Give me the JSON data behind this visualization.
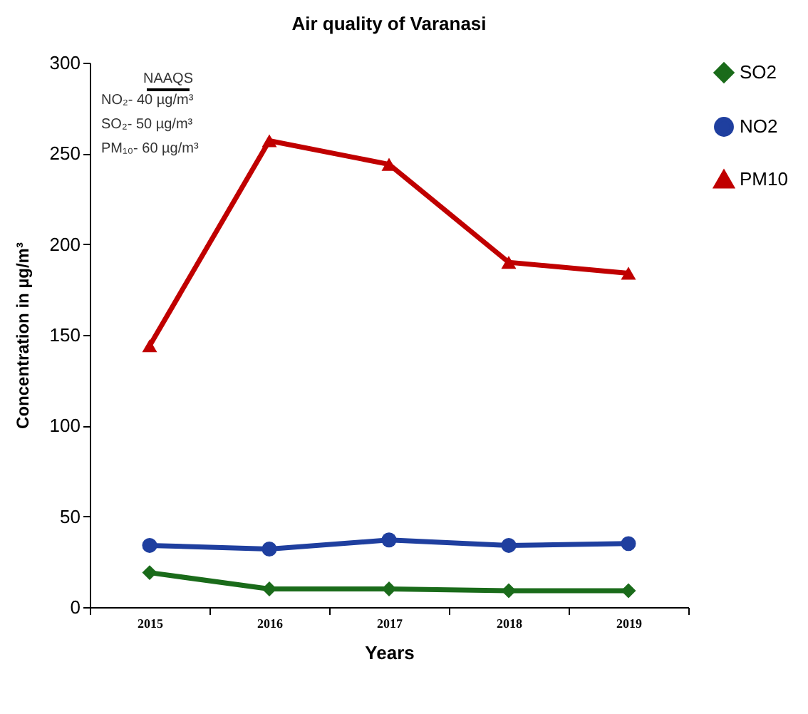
{
  "chart_data": {
    "type": "line",
    "title": "Air quality of  Varanasi",
    "xlabel": "Years",
    "ylabel": "Concentration in  µg/m³",
    "categories": [
      "2015",
      "2016",
      "2017",
      "2018",
      "2019"
    ],
    "series": [
      {
        "name": "SO2",
        "color": "#1a6b1a",
        "marker": "diamond",
        "values": [
          19,
          10,
          10,
          9,
          9
        ]
      },
      {
        "name": "NO2",
        "color": "#1f3f9f",
        "marker": "circle",
        "values": [
          34,
          32,
          37,
          34,
          35
        ]
      },
      {
        "name": "PM10",
        "color": "#c00000",
        "marker": "triangle",
        "values": [
          144,
          257,
          244,
          190,
          184
        ]
      }
    ],
    "ylim": [
      0,
      300
    ],
    "yticks": [
      0,
      50,
      100,
      150,
      200,
      250,
      300
    ],
    "grid": false,
    "legend": "top right",
    "line_style": "solid",
    "annotations": [
      "NAAQS",
      "NO₂- 40 µg/m³",
      "SO₂- 50 µg/m³",
      "PM₁₀- 60 µg/m³"
    ]
  }
}
